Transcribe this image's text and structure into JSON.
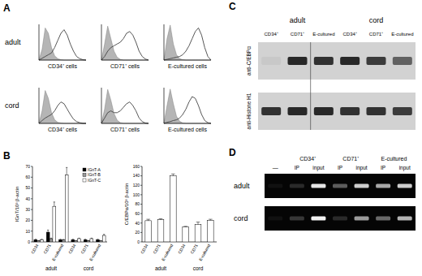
{
  "panel_labels": [
    "A",
    "B",
    "C",
    "D"
  ],
  "flow": {
    "row_labels": [
      "adult",
      "cord"
    ],
    "column_labels": [
      "CD34⁺ cells",
      "CD71⁺ cells",
      "E-cultured cells"
    ],
    "scale_max": 100,
    "histograms": [
      {
        "filled": [
          0,
          30,
          90,
          75,
          35,
          12,
          4,
          1,
          0,
          0,
          0,
          0,
          0,
          0,
          0,
          0
        ],
        "outline": [
          0,
          5,
          10,
          15,
          20,
          35,
          55,
          75,
          85,
          70,
          45,
          25,
          10,
          4,
          1,
          0
        ]
      },
      {
        "filled": [
          0,
          45,
          95,
          60,
          25,
          8,
          2,
          0,
          0,
          0,
          0,
          0,
          0,
          0,
          0,
          0
        ],
        "outline": [
          0,
          10,
          25,
          35,
          40,
          45,
          50,
          60,
          75,
          80,
          70,
          50,
          25,
          10,
          3,
          0
        ]
      },
      {
        "filled": [
          0,
          60,
          98,
          45,
          15,
          4,
          1,
          0,
          0,
          0,
          0,
          0,
          0,
          0,
          0,
          0
        ],
        "outline": [
          0,
          2,
          4,
          6,
          8,
          10,
          15,
          25,
          40,
          60,
          80,
          90,
          70,
          35,
          10,
          0
        ]
      },
      {
        "filled": [
          0,
          35,
          92,
          70,
          30,
          10,
          3,
          1,
          0,
          0,
          0,
          0,
          0,
          0,
          0,
          0
        ],
        "outline": [
          0,
          8,
          15,
          20,
          25,
          35,
          50,
          60,
          55,
          40,
          25,
          12,
          5,
          2,
          0,
          0
        ]
      },
      {
        "filled": [
          0,
          40,
          95,
          65,
          28,
          9,
          2,
          0,
          0,
          0,
          0,
          0,
          0,
          0,
          0,
          0
        ],
        "outline": [
          0,
          15,
          30,
          35,
          30,
          30,
          35,
          45,
          55,
          60,
          50,
          35,
          15,
          5,
          1,
          0
        ]
      },
      {
        "filled": [
          0,
          50,
          96,
          55,
          20,
          6,
          1,
          0,
          0,
          0,
          0,
          0,
          0,
          0,
          0,
          0
        ],
        "outline": [
          0,
          3,
          5,
          8,
          10,
          15,
          25,
          40,
          60,
          75,
          70,
          50,
          25,
          8,
          2,
          0
        ]
      }
    ]
  },
  "chart_data": [
    {
      "type": "bar",
      "y_label": "IGnT/10³ β-actin",
      "categories": [
        "CD34",
        "CD71",
        "E-cultured",
        "CD34",
        "CD71",
        "E-cultured"
      ],
      "annotations": [
        "adult",
        "cord"
      ],
      "series": [
        {
          "name": "IGnT-A",
          "color": "#000000",
          "values": [
            2,
            9,
            2,
            2,
            2,
            2
          ],
          "errors": [
            0.5,
            2,
            0.5,
            0.5,
            0.5,
            0.5
          ]
        },
        {
          "name": "IGnT-B",
          "color": "#999999",
          "values": [
            1,
            3,
            2,
            1,
            1,
            1
          ],
          "errors": [
            0.3,
            0.5,
            0.3,
            0.3,
            0.3,
            0.3
          ]
        },
        {
          "name": "IGnT-C",
          "color": "#ffffff",
          "values": [
            2,
            33,
            62,
            3,
            3,
            6
          ],
          "errors": [
            0.5,
            4,
            7,
            0.5,
            0.5,
            1
          ]
        }
      ],
      "ylim": [
        0,
        70
      ],
      "yticks": [
        0,
        10,
        20,
        30,
        40,
        50,
        60,
        70
      ],
      "legend": "upper right"
    },
    {
      "type": "bar",
      "y_label": "C/EBPα/10³ β-actin",
      "categories": [
        "CD34",
        "CD71",
        "E-cultured",
        "CD34",
        "CD71",
        "E-cultured"
      ],
      "annotations": [
        "adult",
        "cord"
      ],
      "series": [
        {
          "color": "#ffffff",
          "values": [
            45,
            47,
            140,
            32,
            37,
            46
          ],
          "errors": [
            3,
            2,
            4,
            1,
            5,
            2
          ]
        }
      ],
      "ylim": [
        0,
        160
      ],
      "yticks": [
        0,
        20,
        40,
        60,
        80,
        100,
        120,
        140,
        160
      ]
    }
  ],
  "western": {
    "groups": [
      "adult",
      "cord"
    ],
    "lanes": [
      "CD34⁺",
      "CD71⁺",
      "E-cultured"
    ],
    "rows": [
      {
        "label": "anti-C/EBPα",
        "intensity": [
          0.05,
          0.9,
          0.85,
          0.9,
          0.8,
          0.6
        ]
      },
      {
        "label": "anti-Histone H1",
        "intensity": [
          0.85,
          0.9,
          0.9,
          0.85,
          0.85,
          0.8
        ]
      }
    ]
  },
  "gel": {
    "blank_lane": "—",
    "groups": [
      {
        "label": "CD34⁺",
        "lanes": [
          "IP",
          "input"
        ]
      },
      {
        "label": "CD71⁺",
        "lanes": [
          "IP",
          "input"
        ]
      },
      {
        "label": "E-cultured",
        "lanes": [
          "IP",
          "input"
        ]
      }
    ],
    "rows": [
      {
        "label": "adult",
        "intensity": [
          0.05,
          0.15,
          0.9,
          0.35,
          0.8,
          0.65,
          0.8
        ]
      },
      {
        "label": "cord",
        "intensity": [
          0.05,
          0.2,
          0.95,
          0.15,
          0.6,
          0.4,
          0.7
        ]
      }
    ]
  }
}
